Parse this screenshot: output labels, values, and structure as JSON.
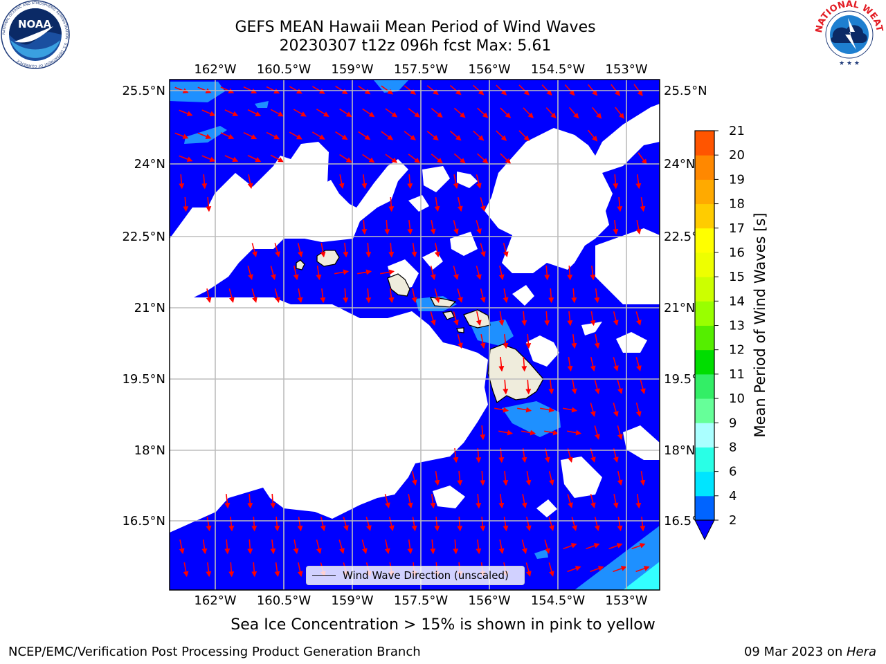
{
  "title": {
    "line1": "GEFS MEAN Hawaii Mean Period of Wind Waves",
    "line2": "20230307 t12z 096h fcst    Max: 5.61"
  },
  "map": {
    "lon_labels": [
      "162°W",
      "160.5°W",
      "159°W",
      "157.5°W",
      "156°W",
      "154.5°W",
      "153°W"
    ],
    "lat_labels": [
      "25.5°N",
      "24°N",
      "22.5°N",
      "21°N",
      "19.5°N",
      "18°N",
      "16.5°N"
    ],
    "ocean_color": "#0000ff",
    "land_color": "#efecdc",
    "arrow_color": "#ff0000",
    "legend_label": "Wind Wave Direction (unscaled)"
  },
  "colorbar": {
    "label": "Mean Period of Wind Waves [s]",
    "ticks": [
      "2",
      "4",
      "6",
      "8",
      "9",
      "10",
      "11",
      "12",
      "13",
      "14",
      "15",
      "16",
      "17",
      "18",
      "19",
      "20",
      "21"
    ],
    "colors": [
      "#0064ff",
      "#00e5ff",
      "#29ffe6",
      "#aaffff",
      "#66ff99",
      "#33ee66",
      "#00dd00",
      "#55ee00",
      "#99ff00",
      "#ccff00",
      "#eeff00",
      "#ffff00",
      "#ffcc00",
      "#ffaa00",
      "#ff8800",
      "#ff5500",
      "#ff2a00",
      "#ff0000"
    ]
  },
  "logos": {
    "noaa_text": "NOAA",
    "noaa_ring_text": "NATIONAL OCEANIC AND ATMOSPHERIC ADMINISTRATION · U.S. DEPARTMENT OF COMMERCE",
    "nws_ring_text": "NATIONAL WEATHER SERVICE"
  },
  "notes": {
    "ice": "Sea Ice Concentration > 15% is shown in pink to yellow",
    "footer_left": "NCEP/EMC/Verification Post Processing Product Generation Branch",
    "footer_date": "09 Mar 2023 on ",
    "footer_host": "Hera"
  }
}
